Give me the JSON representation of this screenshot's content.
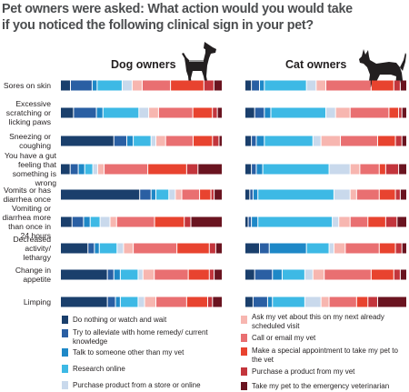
{
  "title_line1": "Pet owners were asked: What action would you would take",
  "title_line2": "if you noticed the following clinical sign in your pet?",
  "colors": [
    "#1a3f6c",
    "#2a5fa3",
    "#1e88c7",
    "#3db9e5",
    "#c9d9ec",
    "#f7b6b0",
    "#e96f71",
    "#e8432f",
    "#c3353c",
    "#6a1420"
  ],
  "chart_data": {
    "type": "bar",
    "stacked": true,
    "orientation": "horizontal",
    "categories": [
      "Sores on skin",
      "Excessive scratching or licking paws",
      "Sneezing or coughing",
      "You have a gut feeling that something is wrong",
      "Vomits or has diarrhea once",
      "Vomiting or diarrhea more than once in 24 hours",
      "Decreased activity/ lethargy",
      "Change in appetite",
      "Limping"
    ],
    "legend": [
      "Do nothing or watch and wait",
      "Try to alleviate with home remedy/ current knowledge",
      "Talk to someone other than my vet",
      "Research online",
      "Purchase product from a store or online",
      "Ask my vet about this on my next already scheduled visit",
      "Call or email my vet",
      "Make a special appointment to take my pet to the vet",
      "Purchase a product from my vet",
      "Take my pet to the emergency veterinarian"
    ],
    "groups": [
      {
        "name": "Dog owners",
        "values": [
          [
            6,
            13,
            3,
            15,
            6,
            6,
            17,
            20,
            6,
            5
          ],
          [
            8,
            14,
            4,
            22,
            6,
            6,
            21,
            12,
            3,
            3
          ],
          [
            33,
            8,
            4,
            11,
            3,
            6,
            17,
            12,
            4,
            2
          ],
          [
            6,
            5,
            4,
            5,
            3,
            4,
            27,
            24,
            7,
            15
          ],
          [
            49,
            7,
            3,
            8,
            4,
            4,
            11,
            7,
            2,
            5
          ],
          [
            7,
            7,
            4,
            6,
            6,
            4,
            23,
            18,
            4,
            19
          ],
          [
            17,
            4,
            3,
            11,
            4,
            6,
            27,
            20,
            4,
            4
          ],
          [
            29,
            4,
            4,
            11,
            3,
            7,
            21,
            13,
            3,
            5
          ],
          [
            29,
            5,
            3,
            11,
            4,
            7,
            19,
            13,
            3,
            6
          ]
        ]
      },
      {
        "name": "Cat owners",
        "values": [
          [
            4,
            5,
            3,
            26,
            6,
            6,
            28,
            14,
            4,
            4
          ],
          [
            6,
            6,
            4,
            34,
            6,
            9,
            24,
            6,
            2,
            3
          ],
          [
            4,
            3,
            5,
            30,
            5,
            12,
            23,
            11,
            4,
            3
          ],
          [
            4,
            3,
            4,
            41,
            13,
            6,
            12,
            4,
            8,
            5
          ],
          [
            3,
            2,
            3,
            47,
            10,
            4,
            14,
            10,
            3,
            4
          ],
          [
            2,
            2,
            4,
            46,
            4,
            7,
            11,
            11,
            7,
            6
          ],
          [
            9,
            6,
            23,
            14,
            3,
            7,
            21,
            10,
            4,
            3
          ],
          [
            6,
            11,
            6,
            14,
            5,
            7,
            29,
            14,
            4,
            4
          ],
          [
            5,
            9,
            3,
            20,
            10,
            5,
            17,
            7,
            6,
            18
          ]
        ]
      }
    ]
  }
}
